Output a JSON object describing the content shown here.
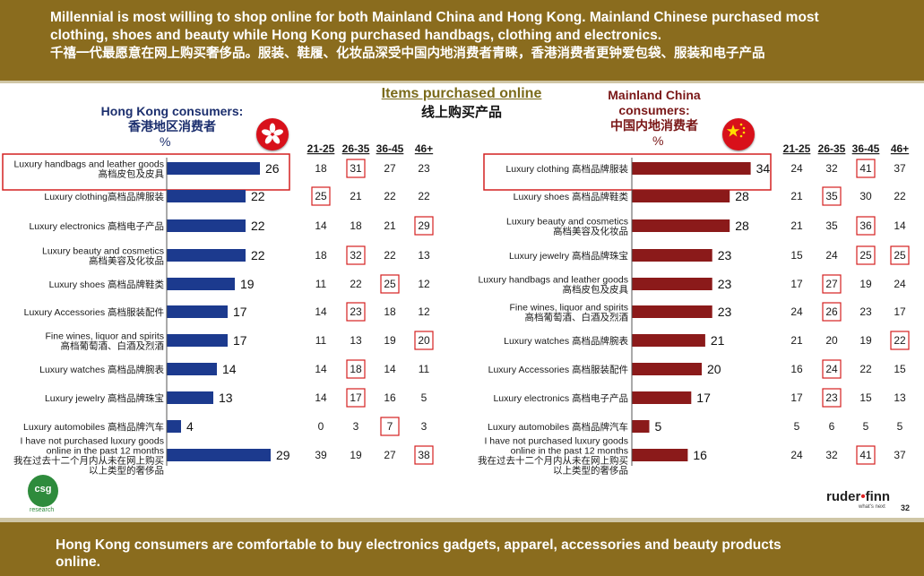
{
  "header": {
    "line1": "Millennial is most willing to shop online for both Mainland China and Hong Kong. Mainland Chinese purchased most",
    "line2": "clothing, shoes and beauty while Hong Kong purchased handbags, clothing and electronics.",
    "line3": "千禧一代最愿意在网上购买奢侈品。服装、鞋履、化妆品深受中国内地消费者青睐，香港消费者更钟爱包袋、服装和电子产品"
  },
  "center_title": {
    "en": "Items purchased online",
    "zh": "线上购买产品"
  },
  "hk_title": {
    "en": "Hong Kong consumers:",
    "zh": "香港地区消费者",
    "unit": "%"
  },
  "cn_title": {
    "en1": "Mainland China",
    "en2": "consumers:",
    "zh": "中国内地消费者",
    "unit": "%"
  },
  "footer": {
    "line1": "Hong Kong consumers are comfortable to buy electronics gadgets, apparel, accessories and beauty products",
    "line2": "online."
  },
  "brand": {
    "name_a": "ruder",
    "name_b": "finn",
    "tagline": "what's next",
    "page": "32",
    "csg": "csg",
    "csg_sub": "research"
  },
  "colors": {
    "hk_bar": "#1c3a8e",
    "cn_bar": "#8b1a1a",
    "highlight": "#d42020",
    "header_bg": "#8a6c1e"
  },
  "chart_data": [
    {
      "type": "bar",
      "orientation": "horizontal",
      "title": "Hong Kong consumers: 香港地区消费者",
      "unit": "%",
      "categories": [
        [
          "Luxury handbags and leather goods",
          "高档皮包及皮具"
        ],
        [
          "Luxury clothing高档品牌服装"
        ],
        [
          "Luxury electronics 高档电子产品"
        ],
        [
          "Luxury beauty and  cosmetics",
          "高档美容及化妆品"
        ],
        [
          "Luxury shoes 高档品牌鞋类"
        ],
        [
          "Luxury Accessories 高档服装配件"
        ],
        [
          "Fine wines, liquor and spirits",
          "高档葡萄酒、白酒及烈酒"
        ],
        [
          "Luxury watches 高档品牌腕表"
        ],
        [
          "Luxury jewelry 高档品牌珠宝"
        ],
        [
          "Luxury automobiles 高档品牌汽车"
        ],
        [
          "I have not purchased luxury goods",
          "online in the past 12 months",
          "我在过去十二个月内从未在网上购买",
          "以上类型的奢侈品"
        ]
      ],
      "values": [
        26,
        22,
        22,
        22,
        19,
        17,
        17,
        14,
        13,
        4,
        29
      ],
      "highlighted_category": 0,
      "age_groups": [
        "21-25",
        "26-35",
        "36-45",
        "46+"
      ],
      "age_values": [
        [
          18,
          31,
          27,
          23
        ],
        [
          25,
          21,
          22,
          22
        ],
        [
          14,
          18,
          21,
          29
        ],
        [
          18,
          32,
          22,
          13
        ],
        [
          11,
          22,
          25,
          12
        ],
        [
          14,
          23,
          18,
          12
        ],
        [
          11,
          13,
          19,
          20
        ],
        [
          14,
          18,
          14,
          11
        ],
        [
          14,
          17,
          16,
          5
        ],
        [
          0,
          3,
          7,
          3
        ],
        [
          39,
          19,
          27,
          38
        ]
      ],
      "boxed_age_index": [
        1,
        0,
        3,
        1,
        2,
        1,
        3,
        1,
        1,
        2,
        3
      ]
    },
    {
      "type": "bar",
      "orientation": "horizontal",
      "title": "Mainland China consumers: 中国内地消费者",
      "unit": "%",
      "categories": [
        [
          "Luxury clothing 高档品牌服装"
        ],
        [
          "Luxury shoes 高档品牌鞋类"
        ],
        [
          "Luxury beauty and  cosmetics",
          "高档美容及化妆品"
        ],
        [
          "Luxury jewelry 高档品牌珠宝"
        ],
        [
          "Luxury handbags and leather goods",
          "高档皮包及皮具"
        ],
        [
          "Fine wines, liquor and spirits",
          "高档葡萄酒、白酒及烈酒"
        ],
        [
          "Luxury watches 高档品牌腕表"
        ],
        [
          "Luxury Accessories 高档服装配件"
        ],
        [
          "Luxury electronics 高档电子产品"
        ],
        [
          "Luxury automobiles 高档品牌汽车"
        ],
        [
          "I have not purchased luxury goods",
          "online in the past 12 months",
          "我在过去十二个月内从未在网上购买",
          "以上类型的奢侈品"
        ]
      ],
      "values": [
        34,
        28,
        28,
        23,
        23,
        23,
        21,
        20,
        17,
        5,
        16
      ],
      "highlighted_category": 0,
      "age_groups": [
        "21-25",
        "26-35",
        "36-45",
        "46+"
      ],
      "age_values": [
        [
          24,
          32,
          41,
          37
        ],
        [
          21,
          35,
          30,
          22
        ],
        [
          21,
          35,
          36,
          14
        ],
        [
          15,
          24,
          25,
          25
        ],
        [
          17,
          27,
          19,
          24
        ],
        [
          24,
          26,
          23,
          17
        ],
        [
          21,
          20,
          19,
          22
        ],
        [
          16,
          24,
          22,
          15
        ],
        [
          17,
          23,
          15,
          13
        ],
        [
          5,
          6,
          5,
          5
        ],
        [
          24,
          32,
          41,
          37
        ]
      ],
      "boxed_age_index": [
        [
          2
        ],
        [
          1
        ],
        [
          2
        ],
        [
          2,
          3
        ],
        [
          1
        ],
        [
          1
        ],
        [
          3
        ],
        [
          1
        ],
        [
          1
        ],
        [],
        [
          2
        ]
      ]
    }
  ]
}
